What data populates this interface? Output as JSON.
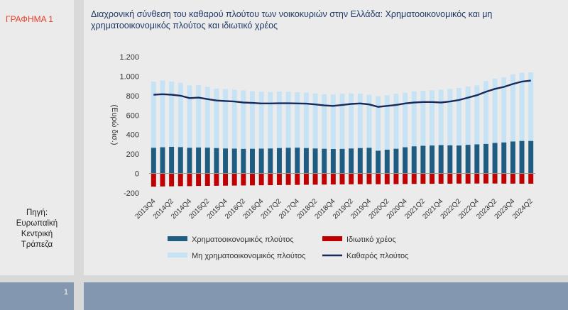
{
  "figure_label": "ΓΡΑΦΗΜΑ 1",
  "source_lines": [
    "Πηγή:",
    "Ευρωπαϊκή",
    "Κεντρική",
    "Τράπεζα"
  ],
  "page_number": "1",
  "colors": {
    "financial": "#1f5c82",
    "nonfinancial": "#c5e3f5",
    "debt": "#c00000",
    "net": "#172a5c",
    "title": "#1f3864",
    "label_red": "#e8402b"
  },
  "chart_data": {
    "type": "bar",
    "title": "Διαχρονική σύνθεση του καθαρού πλούτου των νοικοκυριών στην Ελλάδα: Χρηματοοικονομικός και μη χρηματοοικονομικός πλούτος και ιδιωτικό χρέος",
    "ylabel": "(Ευρώ δισ.)",
    "ylim": [
      -200,
      1200
    ],
    "yticks": [
      -200,
      0,
      200,
      400,
      600,
      800,
      1000,
      1200
    ],
    "ytick_labels": [
      "-200",
      "0",
      "200",
      "400",
      "600",
      "800",
      "1.000",
      "1.200"
    ],
    "grid": false,
    "legend_position": "bottom",
    "categories": [
      "2013Q4",
      "2014Q1",
      "2014Q2",
      "2014Q3",
      "2014Q4",
      "2015Q1",
      "2015Q2",
      "2015Q3",
      "2015Q4",
      "2016Q1",
      "2016Q2",
      "2016Q3",
      "2016Q4",
      "2017Q1",
      "2017Q2",
      "2017Q3",
      "2017Q4",
      "2018Q1",
      "2018Q2",
      "2018Q3",
      "2018Q4",
      "2019Q1",
      "2019Q2",
      "2019Q3",
      "2019Q4",
      "2020Q1",
      "2020Q2",
      "2020Q3",
      "2020Q4",
      "2021Q1",
      "2021Q2",
      "2021Q3",
      "2021Q4",
      "2022Q1",
      "2022Q2",
      "2022Q3",
      "2022Q4",
      "2023Q1",
      "2023Q2",
      "2023Q3",
      "2023Q4",
      "2024Q1",
      "2024Q2"
    ],
    "tick_labels": [
      "2013Q4",
      "2014Q2",
      "2014Q4",
      "2015Q2",
      "2015Q4",
      "2016Q2",
      "2016Q4",
      "2017Q2",
      "2017Q4",
      "2018Q2",
      "2018Q4",
      "2019Q2",
      "2019Q4",
      "2020Q2",
      "2020Q4",
      "2021Q2",
      "2021Q4",
      "2022Q2",
      "2022Q4",
      "2023Q2",
      "2023Q4",
      "2024Q2"
    ],
    "series": [
      {
        "name": "Χρηματοοικονομικός πλούτος",
        "kind": "bar",
        "color": "#1f5c82",
        "values": [
          265,
          270,
          275,
          272,
          265,
          268,
          266,
          262,
          258,
          256,
          254,
          255,
          256,
          258,
          262,
          265,
          266,
          262,
          258,
          255,
          252,
          254,
          258,
          262,
          265,
          235,
          245,
          255,
          270,
          280,
          285,
          288,
          292,
          290,
          288,
          295,
          300,
          305,
          315,
          320,
          330,
          335,
          335
        ]
      },
      {
        "name": "Ιδιωτικό χρέος",
        "kind": "bar",
        "color": "#c00000",
        "values": [
          -135,
          -133,
          -132,
          -130,
          -130,
          -128,
          -127,
          -126,
          -125,
          -124,
          -123,
          -122,
          -121,
          -120,
          -119,
          -118,
          -117,
          -116,
          -115,
          -114,
          -113,
          -112,
          -111,
          -110,
          -109,
          -110,
          -110,
          -109,
          -108,
          -107,
          -106,
          -106,
          -105,
          -105,
          -104,
          -104,
          -103,
          -103,
          -103,
          -104,
          -104,
          -105,
          -105
        ]
      },
      {
        "name": "Μη χρηματοοικονομικός πλούτος",
        "kind": "bar",
        "color": "#c5e3f5",
        "values": [
          680,
          685,
          670,
          660,
          640,
          640,
          625,
          610,
          610,
          605,
          600,
          590,
          585,
          580,
          580,
          575,
          570,
          570,
          565,
          560,
          560,
          565,
          565,
          560,
          545,
          560,
          560,
          565,
          560,
          565,
          565,
          568,
          570,
          580,
          590,
          600,
          605,
          645,
          660,
          670,
          690,
          700,
          705
        ]
      },
      {
        "name": "Καθαρός πλούτος",
        "kind": "line",
        "color": "#172a5c",
        "values": [
          810,
          815,
          810,
          800,
          775,
          780,
          765,
          750,
          745,
          740,
          730,
          725,
          720,
          720,
          722,
          722,
          720,
          718,
          710,
          700,
          695,
          705,
          715,
          720,
          710,
          685,
          695,
          705,
          720,
          730,
          735,
          735,
          730,
          740,
          755,
          780,
          805,
          840,
          870,
          890,
          920,
          945,
          955
        ]
      }
    ]
  }
}
